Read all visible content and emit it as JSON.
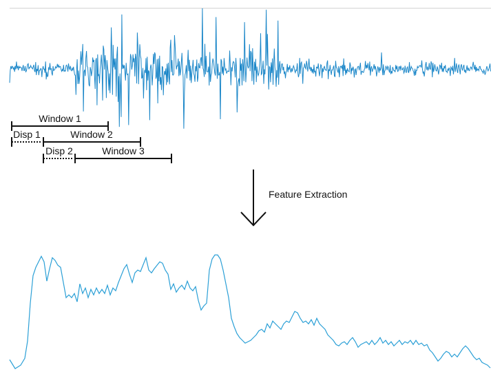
{
  "colors": {
    "signal": "#1a86c8",
    "feature": "#2a9fd6",
    "ink": "#111111",
    "rule": "#cfcfcf"
  },
  "windows": {
    "window1": "Window 1",
    "window2": "Window 2",
    "window3": "Window 3",
    "disp1": "Disp 1",
    "disp2": "Disp 2"
  },
  "process": {
    "label": "Feature Extraction",
    "arrow_icon": "down-arrow-icon"
  }
}
